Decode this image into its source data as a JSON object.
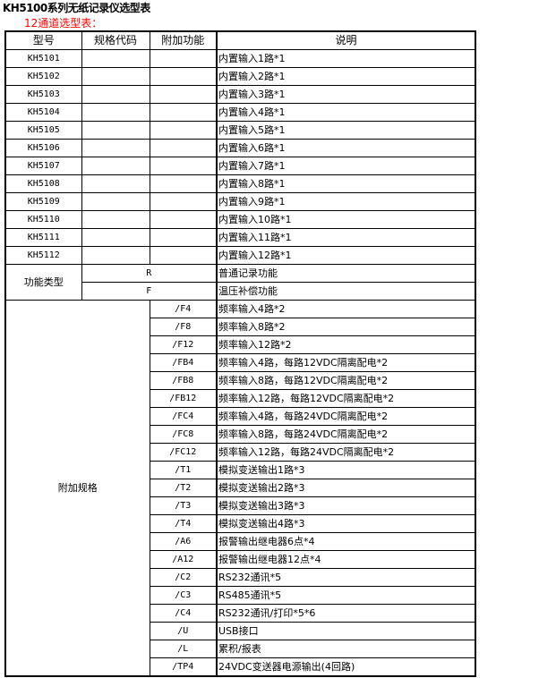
{
  "title": "KH5100系列无纸记录仪选型表",
  "subtitle": "12通道选型表：",
  "headers": [
    "型号",
    "规格代码",
    "附加功能",
    "说明"
  ],
  "models": [
    {
      "model": "KH5101",
      "desc": "内置输入1路*1"
    },
    {
      "model": "KH5102",
      "desc": "内置输入2路*1"
    },
    {
      "model": "KH5103",
      "desc": "内置输入3路*1"
    },
    {
      "model": "KH5104",
      "desc": "内置输入4路*1"
    },
    {
      "model": "KH5105",
      "desc": "内置输入5路*1"
    },
    {
      "model": "KH5106",
      "desc": "内置输入6路*1"
    },
    {
      "model": "KH5107",
      "desc": "内置输入7路*1"
    },
    {
      "model": "KH5108",
      "desc": "内置输入8路*1"
    },
    {
      "model": "KH5109",
      "desc": "内置输入9路*1"
    },
    {
      "model": "KH5110",
      "desc": "内置输入10路*1"
    },
    {
      "model": "KH5111",
      "desc": "内置输入11路*1"
    },
    {
      "model": "KH5112",
      "desc": "内置输入12路*1"
    }
  ],
  "function_type": {
    "label": "功能类型",
    "items": [
      {
        "code": "R",
        "desc": "普通记录功能"
      },
      {
        "code": "F",
        "desc": "温压补偿功能"
      }
    ]
  },
  "additional": {
    "label": "附加规格",
    "items": [
      {
        "code": "/F4",
        "desc": "频率输入4路*2"
      },
      {
        "code": "/F8",
        "desc": "频率输入8路*2"
      },
      {
        "code": "/F12",
        "desc": "频率输入12路*2"
      },
      {
        "code": "/FB4",
        "desc": "频率输入4路，每路12VDC隔离配电*2"
      },
      {
        "code": "/FB8",
        "desc": "频率输入8路，每路12VDC隔离配电*2"
      },
      {
        "code": "/FB12",
        "desc": "频率输入12路，每路12VDC隔离配电*2"
      },
      {
        "code": "/FC4",
        "desc": "频率输入4路，每路24VDC隔离配电*2"
      },
      {
        "code": "/FC8",
        "desc": "频率输入8路，每路24VDC隔离配电*2"
      },
      {
        "code": "/FC12",
        "desc": "频率输入12路，每路24VDC隔离配电*2"
      },
      {
        "code": "/T1",
        "desc": "模拟变送输出1路*3"
      },
      {
        "code": "/T2",
        "desc": "模拟变送输出2路*3"
      },
      {
        "code": "/T3",
        "desc": "模拟变送输出3路*3"
      },
      {
        "code": "/T4",
        "desc": "模拟变送输出4路*3"
      },
      {
        "code": "/A6",
        "desc": "报警输出继电器6点*4"
      },
      {
        "code": "/A12",
        "desc": "报警输出继电器12点*4"
      },
      {
        "code": "/C2",
        "desc": "RS232通讯*5"
      },
      {
        "code": "/C3",
        "desc": "RS485通讯*5"
      },
      {
        "code": "/C4",
        "desc": "RS232通讯/打印*5*6"
      },
      {
        "code": "/U",
        "desc": "USB接口"
      },
      {
        "code": "/L",
        "desc": "累积/报表"
      },
      {
        "code": "/TP4",
        "desc": "24VDC变送器电源输出(4回路)"
      }
    ]
  }
}
